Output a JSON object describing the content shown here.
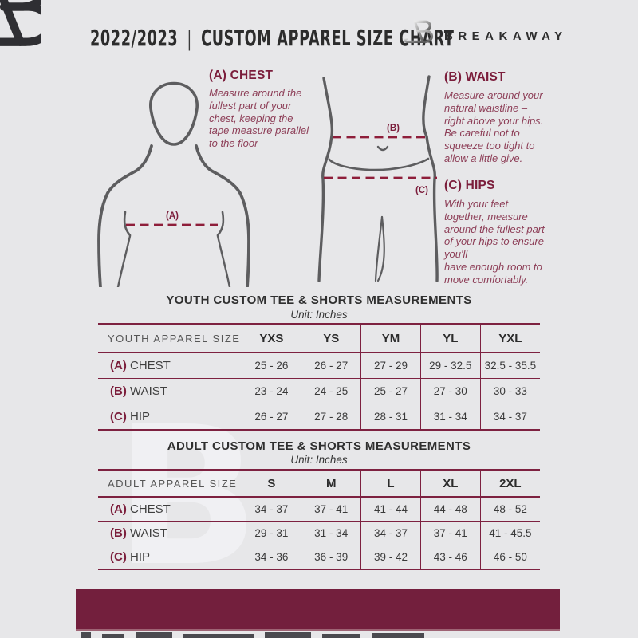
{
  "colors": {
    "background": "#e7e7e9",
    "accent_maroon": "#731f3d",
    "heading_maroon": "#7b1d3b",
    "guide_text_maroon": "#8d3e57",
    "figure_gray": "#5d5d5f",
    "text_dark": "#2c2c2c",
    "table_border": "#7d2140"
  },
  "header": {
    "year": "2022/2023",
    "divider": "|",
    "title": "CUSTOM APPAREL SIZE CHART",
    "brand": "BREAKAWAY",
    "logo_icon": "breakaway-b-logo"
  },
  "guide": {
    "chest": {
      "heading": "(A) CHEST",
      "body": "Measure around the\nfullest part of your\nchest, keeping the\ntape measure parallel\nto the floor"
    },
    "waist": {
      "heading": "(B) WAIST",
      "body": "Measure around your\nnatural waistline –\nright above your hips.\nBe careful not to\nsqueeze too tight to\nallow a little give."
    },
    "hips": {
      "heading": "(C) HIPS",
      "body": "With your feet\ntogether, measure\naround the fullest part\nof your hips to ensure\nyou'll\nhave enough room to\nmove comfortably."
    }
  },
  "diagram": {
    "marker_a": "(A)",
    "marker_b": "(B)",
    "marker_c": "(C)"
  },
  "youth_table": {
    "title": "YOUTH CUSTOM TEE & SHORTS MEASUREMENTS",
    "unit": "Unit: Inches",
    "columns": [
      "YOUTH APPAREL SIZE",
      "YXS",
      "YS",
      "YM",
      "YL",
      "YXL"
    ],
    "rows": [
      {
        "prefix": "(A)",
        "label": "CHEST",
        "values": [
          "25 - 26",
          "26 - 27",
          "27 - 29",
          "29 - 32.5",
          "32.5 - 35.5"
        ]
      },
      {
        "prefix": "(B)",
        "label": "WAIST",
        "values": [
          "23 - 24",
          "24 - 25",
          "25 - 27",
          "27 - 30",
          "30 - 33"
        ]
      },
      {
        "prefix": "(C)",
        "label": "HIP",
        "values": [
          "26 - 27",
          "27 - 28",
          "28 - 31",
          "31 - 34",
          "34 - 37"
        ]
      }
    ]
  },
  "adult_table": {
    "title": "ADULT CUSTOM TEE & SHORTS MEASUREMENTS",
    "unit": "Unit: Inches",
    "columns": [
      "ADULT APPAREL SIZE",
      "S",
      "M",
      "L",
      "XL",
      "2XL"
    ],
    "rows": [
      {
        "prefix": "(A)",
        "label": "CHEST",
        "values": [
          "34 - 37",
          "37 - 41",
          "41 - 44",
          "44 - 48",
          "48 - 52"
        ]
      },
      {
        "prefix": "(B)",
        "label": "WAIST",
        "values": [
          "29 - 31",
          "31 - 34",
          "34 - 37",
          "37 - 41",
          "41 - 45.5"
        ]
      },
      {
        "prefix": "(C)",
        "label": "HIP",
        "values": [
          "34 - 36",
          "36 - 39",
          "39 - 42",
          "43 - 46",
          "46 - 50"
        ]
      }
    ]
  },
  "watermark": "B"
}
